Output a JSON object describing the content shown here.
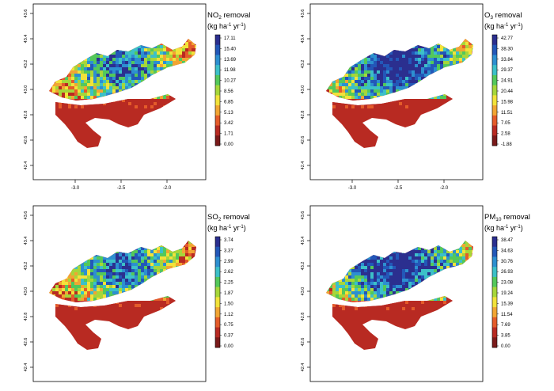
{
  "panels": [
    {
      "key": "no2",
      "title_main": "NO",
      "title_sub": "2",
      "title_rest": " removal",
      "unit_lines": [
        "(kg ha",
        "-1",
        " yr",
        "-1",
        ")"
      ],
      "legend_values": [
        "17.11",
        "15.40",
        "13.69",
        "11.98",
        "10.27",
        "8.56",
        "6.85",
        "5.13",
        "3.42",
        "1.71",
        "0.00"
      ],
      "y_ticks": [
        "43.6",
        "43.4",
        "43.2",
        "43.0",
        "42.8",
        "42.6",
        "42.4"
      ],
      "x_ticks": [
        "-3.0",
        "-2.5",
        "-2.0"
      ],
      "intensity": "mid"
    },
    {
      "key": "o3",
      "title_main": "O",
      "title_sub": "3",
      "title_rest": " removal",
      "unit_lines": [
        "(kg ha",
        "-1",
        " yr",
        "-1",
        ")"
      ],
      "legend_values": [
        "42.77",
        "38.30",
        "33.84",
        "29.37",
        "24.91",
        "20.44",
        "15.98",
        "11.51",
        "7.05",
        "2.58",
        "-1.88"
      ],
      "y_ticks": [
        "43.6",
        "43.4",
        "43.2",
        "43.0",
        "42.8",
        "42.6",
        "42.4"
      ],
      "x_ticks": [
        "-3.0",
        "-2.5",
        "-2.0"
      ],
      "intensity": "high"
    },
    {
      "key": "so2",
      "title_main": "SO",
      "title_sub": "2",
      "title_rest": " removal",
      "unit_lines": [
        "(kg ha",
        "-1",
        " yr",
        "-1",
        ")"
      ],
      "legend_values": [
        "3.74",
        "3.37",
        "2.99",
        "2.62",
        "2.25",
        "1.87",
        "1.50",
        "1.12",
        "0.75",
        "0.37",
        "0.00"
      ],
      "y_ticks": [
        "43.6",
        "43.4",
        "43.2",
        "43.0",
        "42.8",
        "42.6",
        "42.4"
      ],
      "x_ticks": [],
      "intensity": "mid"
    },
    {
      "key": "pm10",
      "title_main": "PM",
      "title_sub": "10",
      "title_rest": " removal",
      "unit_lines": [
        "(kg ha",
        "-1",
        " yr",
        "-1",
        ")"
      ],
      "legend_values": [
        "38.47",
        "34.63",
        "30.76",
        "26.93",
        "23.08",
        "19.24",
        "15.39",
        "11.54",
        "7.69",
        "3.85",
        "0.00"
      ],
      "y_ticks": [
        "43.6",
        "43.4",
        "43.2",
        "43.0",
        "42.8",
        "42.6",
        "42.4"
      ],
      "x_ticks": [],
      "intensity": "high"
    }
  ],
  "colors": {
    "ramp": [
      "#2b2f8f",
      "#2357b8",
      "#2d8fd0",
      "#3cc0c8",
      "#53c85a",
      "#a6d63a",
      "#f2e23a",
      "#f1a533",
      "#e45b2a",
      "#b82a22",
      "#7a1a1a"
    ],
    "frame": "#000000",
    "background": "#ffffff"
  }
}
